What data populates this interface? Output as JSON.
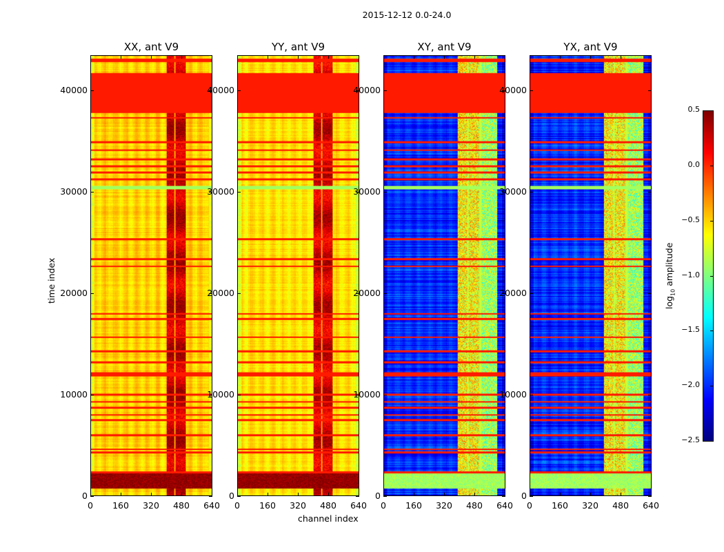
{
  "chart_data": {
    "type": "heatmap",
    "title": "2015-12-12 0.0-24.0",
    "xlabel": "channel index",
    "ylabel": "time index",
    "xlim": [
      0,
      640
    ],
    "ylim": [
      0,
      43500
    ],
    "xticks": [
      0,
      160,
      320,
      480,
      640
    ],
    "yticks": [
      0,
      10000,
      20000,
      30000,
      40000
    ],
    "panels": [
      {
        "title": "XX, ant V9",
        "base_level": -0.5,
        "rfi_channels": [
          400,
          500
        ],
        "rfi_level": 0.3,
        "bottom_band_level": 0.45
      },
      {
        "title": "YY, ant V9",
        "base_level": -0.55,
        "rfi_channels": [
          400,
          500
        ],
        "rfi_level": 0.25,
        "bottom_band_level": 0.45
      },
      {
        "title": "XY, ant V9",
        "base_level": -2.0,
        "rfi_channels": [
          390,
          600
        ],
        "rfi_level": -0.9,
        "bottom_band_level": -0.9
      },
      {
        "title": "YX, ant V9",
        "base_level": -2.0,
        "rfi_channels": [
          390,
          600
        ],
        "rfi_level": -0.9,
        "bottom_band_level": -0.9
      }
    ],
    "flagged_bands": [
      {
        "t0": 37900,
        "t1": 41800,
        "level": 0.05
      },
      {
        "t0": 42900,
        "t1": 43200,
        "level": 0.05
      },
      {
        "t0": 30300,
        "t1": 30700,
        "level": -0.9
      },
      {
        "t0": 11800,
        "t1": 12200,
        "level": 0.05
      }
    ],
    "flagged_lines": [
      43200,
      37400,
      35000,
      34200,
      33300,
      32600,
      32000,
      31300,
      25400,
      23400,
      22700,
      18000,
      17500,
      15700,
      14300,
      13200,
      10000,
      9300,
      8700,
      8000,
      7500,
      6000,
      4600,
      4300,
      2300
    ],
    "colorbar": {
      "label_main": "log",
      "label_sub": "10",
      "label_rest": " amplitude",
      "range": [
        -2.5,
        0.5
      ],
      "ticks": [
        "0.5",
        "0.0",
        "−0.5",
        "−1.0",
        "−1.5",
        "−2.0",
        "−2.5"
      ],
      "tick_values": [
        0.5,
        0,
        -0.5,
        -1,
        -1.5,
        -2,
        -2.5
      ],
      "colormap": "jet"
    }
  }
}
